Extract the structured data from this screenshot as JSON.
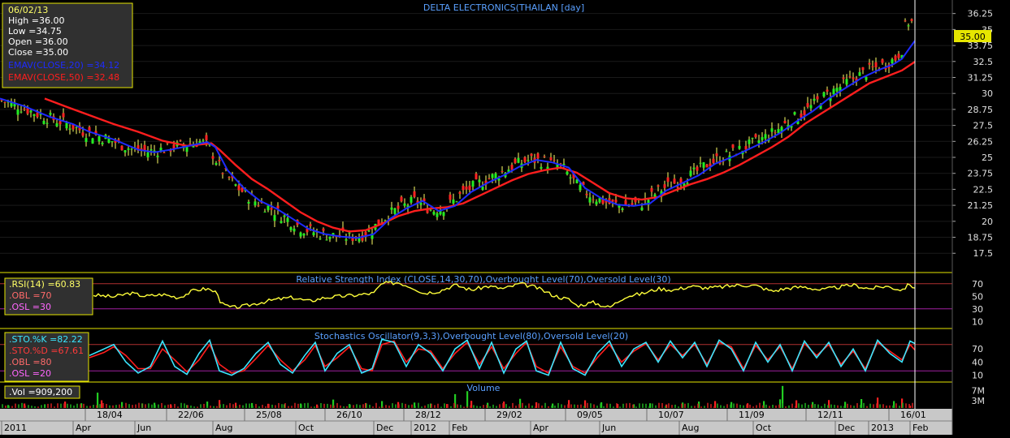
{
  "chart_data": [
    {
      "type": "candlestick",
      "title": "DELTA ELECTRONICS(THAILAN [day]",
      "price_axis_ticks": [
        "36.25",
        "35",
        "33.75",
        "32.5",
        "31.25",
        "30",
        "28.75",
        "27.5",
        "26.25",
        "25",
        "23.75",
        "22.5",
        "21.25",
        "20",
        "18.75",
        "17.5"
      ],
      "ylim": [
        16.5,
        36.8
      ],
      "last_price_label": "35.00",
      "info_box": {
        "date": "06/02/13",
        "high": "High  =36.00",
        "low": "Low   =34.75",
        "open": "Open  =36.00",
        "close": "Close  =35.00",
        "ema20": "EMAV(CLOSE,20)  =34.12",
        "ema50": "EMAV(CLOSE,50)  =32.48"
      },
      "series": [
        {
          "name": "EMAV(CLOSE,20)",
          "color": "#1e2bff",
          "x": [
            0,
            30,
            60,
            90,
            110,
            140,
            170,
            190,
            210,
            240,
            255,
            265,
            280,
            300,
            320,
            340,
            360,
            380,
            400,
            420,
            440,
            460,
            480,
            500,
            520,
            540,
            560,
            580,
            600,
            620,
            640,
            660,
            680,
            700,
            720,
            740,
            760,
            780,
            800,
            820,
            840,
            860,
            880,
            900,
            920,
            940,
            960,
            980,
            1000,
            1020,
            1040,
            1060,
            1080,
            1100,
            1110,
            1120,
            1126
          ],
          "y": [
            29.6,
            29.0,
            28.2,
            27.6,
            27.0,
            26.4,
            25.6,
            25.4,
            25.6,
            26.0,
            26.2,
            25.8,
            24.0,
            22.6,
            21.6,
            21.0,
            20.2,
            19.4,
            19.0,
            18.8,
            18.7,
            19.0,
            20.2,
            21.0,
            21.6,
            20.8,
            21.2,
            22.3,
            23.0,
            23.6,
            24.3,
            24.8,
            24.6,
            24.2,
            22.6,
            21.8,
            21.3,
            21.2,
            21.4,
            22.4,
            23.0,
            23.6,
            24.5,
            25.0,
            25.6,
            26.2,
            26.9,
            27.8,
            28.6,
            29.6,
            30.4,
            31.2,
            31.8,
            32.3,
            32.7,
            33.6,
            34.12
          ]
        },
        {
          "name": "EMAV(CLOSE,50)",
          "color": "#ff1e1e",
          "x": [
            55,
            80,
            110,
            140,
            170,
            200,
            230,
            260,
            270,
            290,
            310,
            330,
            350,
            370,
            390,
            410,
            430,
            450,
            470,
            490,
            510,
            530,
            550,
            570,
            590,
            610,
            630,
            650,
            670,
            690,
            710,
            730,
            750,
            770,
            790,
            810,
            830,
            850,
            870,
            890,
            910,
            930,
            950,
            970,
            990,
            1010,
            1030,
            1050,
            1070,
            1090,
            1110,
            1126
          ],
          "y": [
            29.6,
            29.0,
            28.3,
            27.6,
            27.0,
            26.3,
            25.9,
            26.1,
            25.6,
            24.4,
            23.3,
            22.5,
            21.6,
            20.7,
            20.0,
            19.5,
            19.2,
            19.3,
            19.8,
            20.4,
            20.8,
            21.0,
            21.1,
            21.4,
            22.0,
            22.6,
            23.2,
            23.7,
            24.0,
            24.2,
            23.8,
            23.0,
            22.2,
            21.8,
            21.7,
            21.9,
            22.4,
            22.9,
            23.3,
            23.8,
            24.4,
            25.1,
            25.8,
            26.6,
            27.6,
            28.4,
            29.2,
            30.0,
            30.8,
            31.3,
            31.8,
            32.48
          ]
        }
      ]
    },
    {
      "type": "line",
      "title": "Relative Strength Index (CLOSE,14,30,70),Overbought Level(70),Oversold Level(30)",
      "ticks": [
        "70",
        "50",
        "30",
        "10"
      ],
      "ylim": [
        0,
        80
      ],
      "legend": {
        "rsi": ".RSI(14)   =60.83",
        "obl": ".OBL   =70",
        "osl": ".OSL   =30"
      },
      "levels": [
        70,
        30
      ],
      "series": [
        {
          "name": ".RSI(14)",
          "color": "#ffff3a",
          "x": [
            115,
            140,
            160,
            180,
            200,
            220,
            240,
            255,
            268,
            272,
            285,
            300,
            320,
            340,
            360,
            380,
            400,
            420,
            440,
            460,
            470,
            490,
            510,
            520,
            540,
            560,
            580,
            600,
            620,
            640,
            660,
            680,
            690,
            700,
            710,
            730,
            750,
            770,
            790,
            810,
            830,
            850,
            870,
            890,
            910,
            930,
            950,
            970,
            990,
            1010,
            1030,
            1050,
            1070,
            1090,
            1110,
            1120,
            1126
          ],
          "y": [
            52,
            49,
            55,
            50,
            53,
            48,
            60,
            62,
            55,
            38,
            32,
            34,
            40,
            45,
            48,
            42,
            48,
            50,
            52,
            55,
            70,
            72,
            63,
            55,
            58,
            68,
            60,
            66,
            62,
            70,
            64,
            52,
            48,
            45,
            35,
            40,
            32,
            50,
            54,
            62,
            60,
            66,
            63,
            65,
            68,
            67,
            58,
            63,
            65,
            60,
            64,
            68,
            62,
            66,
            60,
            70,
            60.83
          ]
        }
      ]
    },
    {
      "type": "line",
      "title": "Stochastics Oscillator(9,3,3),Overbought Level(80),Oversold Level(20)",
      "ticks": [
        "70",
        "40",
        "10"
      ],
      "ylim": [
        0,
        100
      ],
      "legend": {
        "k": ".STO.%K   =82.22",
        "d": ".STO.%D   =67.61",
        "obl": ".OBL   =80",
        "osl": ".OSL   =20"
      },
      "levels": [
        80,
        20
      ],
      "series": [
        {
          "name": ".STO.%K",
          "color": "#3ae6ff",
          "x": [
            110,
            128,
            140,
            155,
            170,
            185,
            200,
            215,
            230,
            245,
            258,
            270,
            285,
            300,
            315,
            330,
            345,
            360,
            375,
            388,
            400,
            415,
            430,
            445,
            458,
            470,
            485,
            500,
            515,
            530,
            545,
            560,
            575,
            590,
            605,
            620,
            635,
            648,
            660,
            675,
            690,
            705,
            720,
            735,
            750,
            765,
            780,
            795,
            810,
            825,
            840,
            855,
            870,
            885,
            900,
            915,
            930,
            945,
            960,
            975,
            990,
            1005,
            1020,
            1035,
            1050,
            1065,
            1080,
            1095,
            1110,
            1120,
            1126
          ],
          "y": [
            55,
            70,
            80,
            40,
            15,
            30,
            88,
            30,
            12,
            60,
            90,
            20,
            10,
            25,
            60,
            85,
            35,
            15,
            55,
            85,
            20,
            60,
            80,
            15,
            25,
            92,
            85,
            30,
            80,
            60,
            20,
            70,
            90,
            25,
            85,
            15,
            70,
            88,
            20,
            10,
            85,
            25,
            10,
            60,
            88,
            30,
            70,
            85,
            40,
            88,
            50,
            85,
            30,
            90,
            70,
            20,
            85,
            40,
            80,
            20,
            88,
            50,
            85,
            30,
            70,
            20,
            90,
            60,
            40,
            88,
            82.22
          ]
        },
        {
          "name": ".STO.%D",
          "color": "#ff1e1e",
          "x": [
            110,
            128,
            140,
            155,
            170,
            185,
            200,
            215,
            230,
            245,
            258,
            270,
            285,
            300,
            315,
            330,
            345,
            360,
            375,
            388,
            400,
            415,
            430,
            445,
            458,
            470,
            485,
            500,
            515,
            530,
            545,
            560,
            575,
            590,
            605,
            620,
            635,
            648,
            660,
            675,
            690,
            705,
            720,
            735,
            750,
            765,
            780,
            795,
            810,
            825,
            840,
            855,
            870,
            885,
            900,
            915,
            930,
            945,
            960,
            975,
            990,
            1005,
            1020,
            1035,
            1050,
            1065,
            1080,
            1095,
            1110,
            1120,
            1126
          ],
          "y": [
            50,
            62,
            75,
            55,
            25,
            25,
            70,
            45,
            18,
            45,
            80,
            35,
            15,
            20,
            48,
            78,
            45,
            20,
            45,
            78,
            30,
            50,
            75,
            25,
            20,
            80,
            88,
            40,
            70,
            65,
            25,
            60,
            85,
            35,
            75,
            25,
            60,
            85,
            30,
            15,
            75,
            30,
            15,
            50,
            80,
            40,
            65,
            82,
            45,
            80,
            55,
            80,
            35,
            85,
            75,
            25,
            78,
            45,
            75,
            25,
            82,
            55,
            80,
            35,
            65,
            25,
            85,
            65,
            45,
            80,
            67.61
          ]
        }
      ]
    },
    {
      "type": "bar",
      "title": "Volume",
      "ticks": [
        "7M",
        "3M"
      ],
      "ylim": [
        0,
        9500000
      ],
      "legend": ".Vol   =909,200",
      "series": [
        {
          "name": ".Vol",
          "color": "#22cc22",
          "down_color": "#ff2222",
          "x": [
            10,
            30,
            55,
            80,
            100,
            120,
            125,
            150,
            175,
            190,
            210,
            230,
            255,
            270,
            290,
            310,
            330,
            350,
            370,
            390,
            410,
            430,
            450,
            470,
            490,
            510,
            530,
            550,
            560,
            575,
            580,
            600,
            620,
            640,
            660,
            680,
            700,
            720,
            740,
            760,
            780,
            800,
            820,
            840,
            860,
            880,
            900,
            920,
            940,
            960,
            963,
            980,
            1000,
            1020,
            1040,
            1060,
            1080,
            1100,
            1110,
            1120
          ],
          "y": [
            1200000,
            1800000,
            1500000,
            2600000,
            1900000,
            6200000,
            3100000,
            2400000,
            1800000,
            2100000,
            1500000,
            1200000,
            2600000,
            3200000,
            2100000,
            2000000,
            1700000,
            1500000,
            1800000,
            1400000,
            3400000,
            1600000,
            2000000,
            2800000,
            2400000,
            2200000,
            1800000,
            1600000,
            5600000,
            6800000,
            2900000,
            2100000,
            2600000,
            3700000,
            2300000,
            1800000,
            3200000,
            3100000,
            2300000,
            1600000,
            1500000,
            1900000,
            1400000,
            2200000,
            2600000,
            2800000,
            2400000,
            1900000,
            2800000,
            3500000,
            8900000,
            3100000,
            2400000,
            3200000,
            2500000,
            3600000,
            4200000,
            2800000,
            3800000,
            909200
          ],
          "down": [
            0,
            1,
            0,
            1,
            0,
            0,
            1,
            0,
            1,
            0,
            1,
            0,
            0,
            1,
            1,
            0,
            1,
            0,
            0,
            1,
            0,
            0,
            1,
            0,
            1,
            0,
            0,
            1,
            0,
            0,
            1,
            0,
            1,
            0,
            1,
            0,
            1,
            1,
            0,
            1,
            0,
            0,
            1,
            0,
            0,
            1,
            0,
            1,
            0,
            0,
            0,
            1,
            0,
            1,
            0,
            0,
            1,
            0,
            1,
            1
          ]
        }
      ]
    }
  ],
  "time_axis": {
    "upper_labels": [
      "18/04",
      "22/06",
      "25/08",
      "26/10",
      "28/12",
      "29/02",
      "09/05",
      "10/07",
      "11/09",
      "12/11",
      "16/01"
    ],
    "lower_labels": [
      "2011",
      "Apr",
      "Jun",
      "Aug",
      "Oct",
      "Dec",
      "2012",
      "Feb",
      "Apr",
      "Jun",
      "Aug",
      "Oct",
      "Dec",
      "2013",
      "Feb"
    ]
  }
}
